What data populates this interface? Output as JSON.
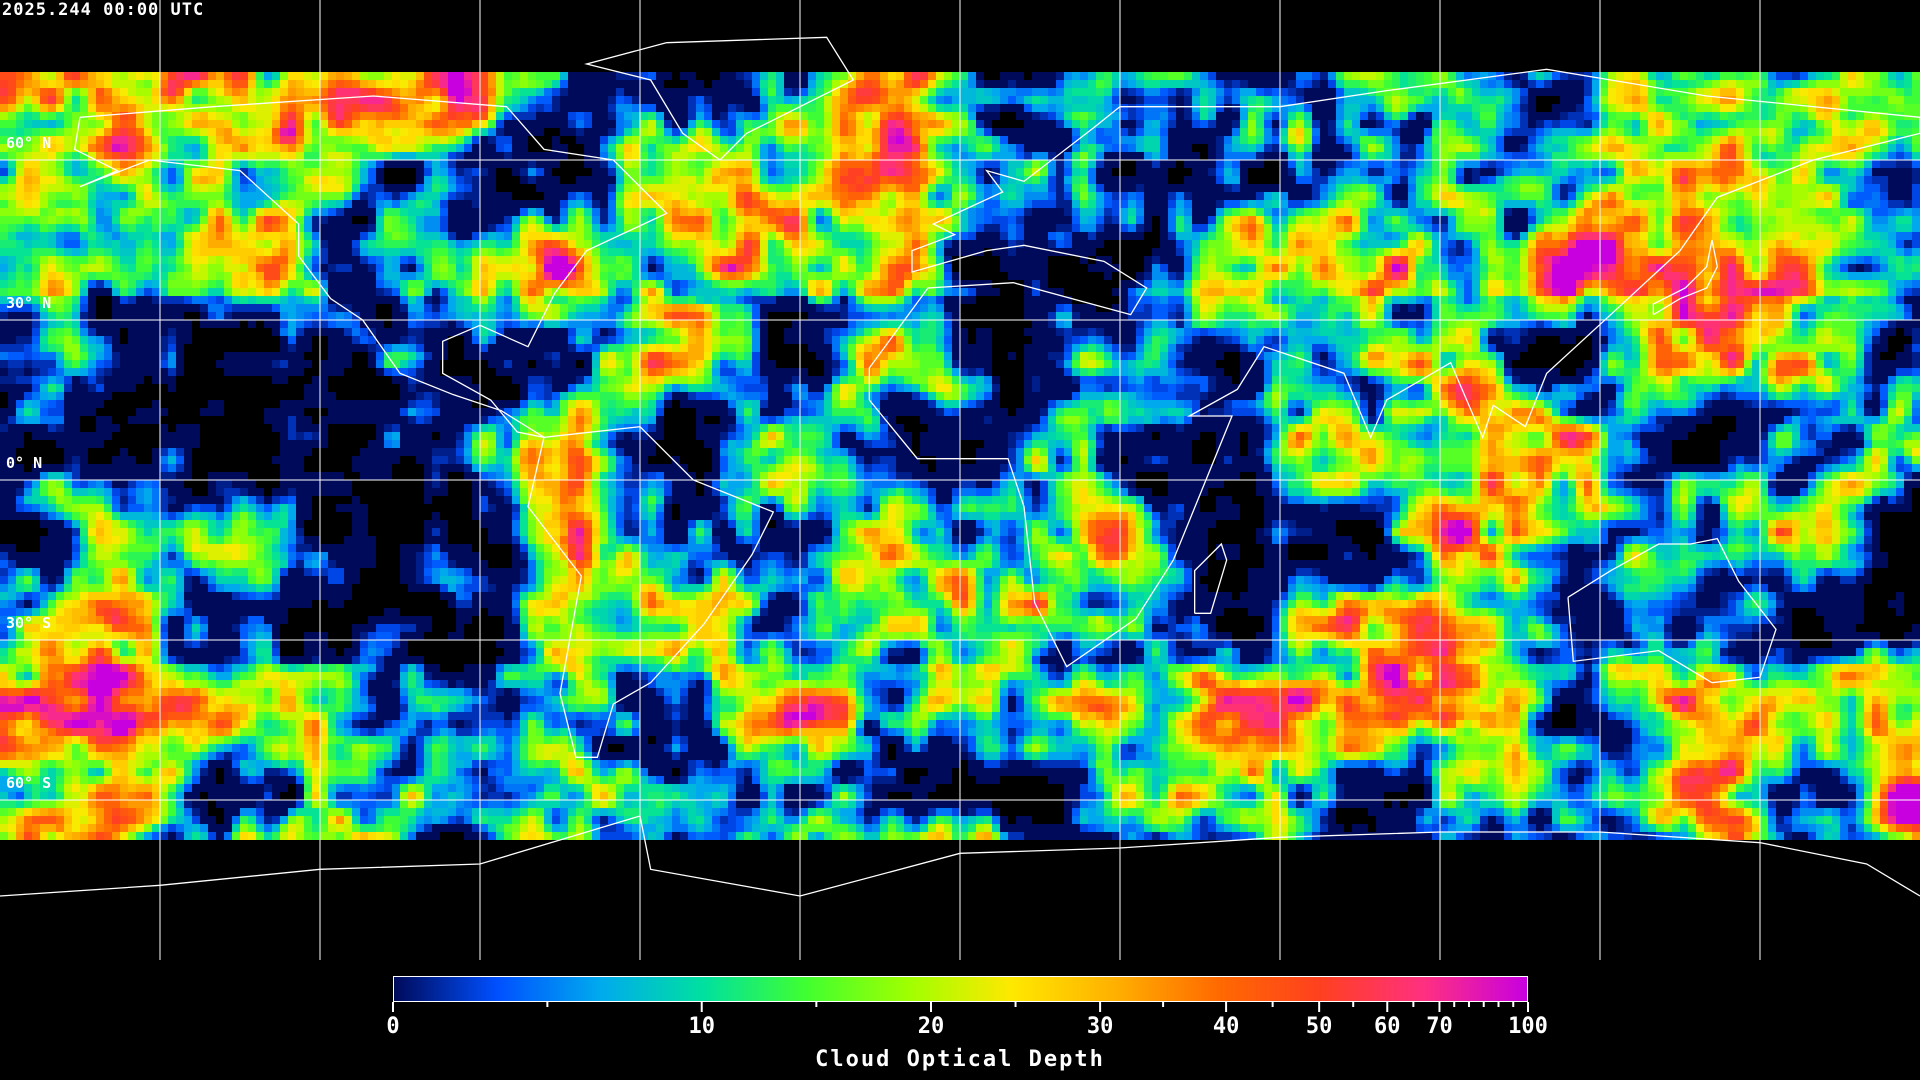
{
  "title": "2025.244 00:00 UTC",
  "map": {
    "projection": "equirectangular",
    "lon_range": [
      -180,
      180
    ],
    "lat_range": [
      -90,
      90
    ],
    "gridline_color": "#ffffff",
    "coastline_color": "#ffffff",
    "background": "#000000",
    "lat_labels": [
      "60° N",
      "30° N",
      "0° N",
      "30° S",
      "60° S"
    ],
    "lat_values": [
      60,
      30,
      0,
      -30,
      -60
    ],
    "lon_grid_values": [
      -150,
      -120,
      -90,
      -60,
      -30,
      0,
      30,
      60,
      90,
      120,
      150
    ]
  },
  "colorbar": {
    "title": "Cloud Optical Depth",
    "range": [
      0,
      100
    ],
    "major_ticks": [
      0,
      10,
      20,
      30,
      40,
      50,
      60,
      70,
      100
    ],
    "tick_labels": [
      "0",
      "10",
      "20",
      "30",
      "40",
      "50",
      "60",
      "70",
      "100"
    ],
    "minor_ticks": [
      5,
      15,
      25,
      35,
      45,
      55,
      65,
      75,
      80,
      85,
      90,
      95
    ],
    "colors": [
      "#000a5a",
      "#0050ff",
      "#00aaee",
      "#00e0a0",
      "#40ff30",
      "#a0ff00",
      "#ffe800",
      "#ffb000",
      "#ff6a00",
      "#ff4020",
      "#ff3080",
      "#c800e0"
    ]
  }
}
